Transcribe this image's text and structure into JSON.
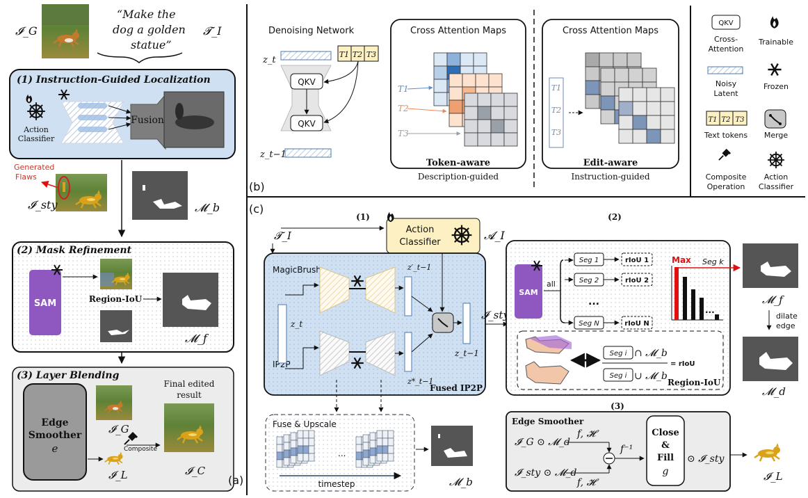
{
  "a": {
    "label": "(a)",
    "input_symbol": "𝓘_G",
    "instruction_quote_line1": "“Make the",
    "instruction_quote_line2": "dog a golden",
    "instruction_quote_line3": "statue”",
    "instruction_symbol": "𝓣_I",
    "step1_title": "(1) Instruction-Guided Localization",
    "action_classifier_line1": "Action",
    "action_classifier_line2": "Classifier",
    "fusion_label": "Fusion",
    "generated_flaws_line1": "Generated",
    "generated_flaws_line2": "Flaws",
    "sty_symbol": "𝓘_sty",
    "mb_symbol": "𝓜_b",
    "step2_title": "(2) Mask Refinement",
    "sam_label": "SAM",
    "region_iou_label": "Region-IoU",
    "mf_symbol": "𝓜_f",
    "step3_title": "(3) Layer Blending",
    "edge_smoother_line1": "Edge",
    "edge_smoother_line2": "Smoother",
    "edge_smoother_symbol": "e",
    "ig_symbol": "𝓘_G",
    "il_symbol": "𝓘_L",
    "composite_label": "Composite",
    "final_result_line1": "Final edited",
    "final_result_line2": "result",
    "ic_symbol": "𝓘_C"
  },
  "b": {
    "label": "(b)",
    "denoising_title": "Denoising Network",
    "zt": "z_t",
    "zt1": "z_t−1",
    "qkv": "QKV",
    "t1": "T1",
    "t2": "T2",
    "t3": "T3",
    "cam_title": "Cross Attention Maps",
    "token_aware": "Token-aware",
    "description_guided": "Description-guided",
    "edit_aware": "Edit-aware",
    "instruction_guided": "Instruction-guided"
  },
  "legend": {
    "qkv_box": "QKV",
    "cross_attention_line1": "Cross-",
    "cross_attention_line2": "Attention",
    "trainable": "Trainable",
    "noisy_latent_line1": "Noisy",
    "noisy_latent_line2": "Latent",
    "frozen": "Frozen",
    "text_tokens": "Text tokens",
    "merge": "Merge",
    "composite_line1": "Composite",
    "composite_line2": "Operation",
    "action_classifier_line1": "Action",
    "action_classifier_line2": "Classifier"
  },
  "c": {
    "label": "(c)",
    "step1": "(1)",
    "step2": "(2)",
    "step3": "(3)",
    "ti_symbol": "𝓣_I",
    "action_classifier_line1": "Action",
    "action_classifier_line2": "Classifier",
    "ai_symbol": "𝓐_I",
    "magicbrush": "MagicBrush",
    "ip2p": "IP2P",
    "zt": "z_t",
    "zt1_prime": "z′_t−1",
    "zt1_star": "z*_t−1",
    "zt1": "z_t−1",
    "fused_ip2p": "Fused IP2P",
    "isty": "𝓘_sty",
    "fuse_upscale": "Fuse & Upscale",
    "ellipsis": "...",
    "timestep": "timestep",
    "mb_symbol": "𝓜_b",
    "sam": "SAM",
    "all": "all",
    "seg1": "Seg 1",
    "seg2": "Seg 2",
    "segn": "Seg N",
    "riou1": "rIoU 1",
    "riou2": "rIoU 2",
    "riouN": "rIoU N",
    "max": "Max",
    "seg_k": "Seg k",
    "mf_symbol": "𝓜_f",
    "dilate_line1": "dilate",
    "dilate_line2": "edge",
    "md_symbol": "𝓜_d",
    "seg_i": "Seg i",
    "cap_mb": "∩ 𝓜_b",
    "cup_mb": "∪ 𝓜_b",
    "riou_eq": "= rIoU",
    "region_iou": "Region-IoU",
    "edge_smoother": "Edge Smoother",
    "ig_md": "𝓘_G ⊙ 𝓜_d",
    "isty_md": "𝓘_sty ⊙ 𝓜_d",
    "fh": "f, 𝓗",
    "finv": "f⁻¹",
    "close": "Close",
    "amp": "&",
    "fill": "Fill",
    "g": "g",
    "odot_isty": "⊙ 𝓘_sty",
    "il_symbol": "𝓘_L"
  }
}
